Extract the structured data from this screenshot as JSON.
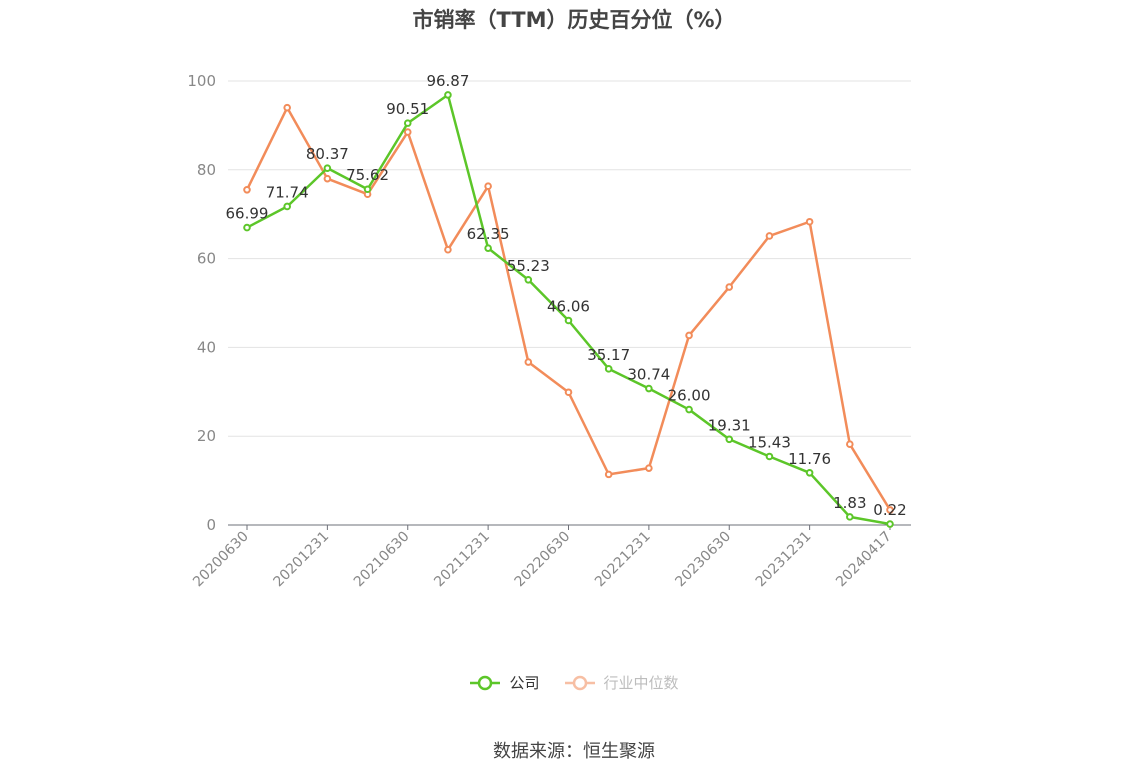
{
  "chart_data": {
    "type": "line",
    "title": "市销率（TTM）历史百分位（%）",
    "xlabel": "",
    "ylabel": "",
    "ylim": [
      0,
      100
    ],
    "yticks": [
      0,
      20,
      40,
      60,
      80,
      100
    ],
    "x": [
      "20200630",
      "20200930",
      "20201231",
      "20210331",
      "20210630",
      "20210930",
      "20211231",
      "20220331",
      "20220630",
      "20220930",
      "20221231",
      "20230331",
      "20230630",
      "20230930",
      "20231231",
      "20240331",
      "20240417"
    ],
    "xtick_labels": [
      "20200630",
      "20201231",
      "20210630",
      "20211231",
      "20220630",
      "20221231",
      "20230630",
      "20231231",
      "20240417"
    ],
    "grid": true,
    "legend_position": "bottom",
    "series": [
      {
        "name": "公司",
        "color": "#5cc629",
        "show_labels": true,
        "values": [
          66.99,
          71.74,
          80.37,
          75.62,
          90.51,
          96.87,
          62.35,
          55.23,
          46.06,
          35.17,
          30.74,
          26.0,
          19.31,
          15.43,
          11.76,
          1.83,
          0.22
        ],
        "labels": [
          "66.99",
          "71.74",
          "80.37",
          "75.62",
          "90.51",
          "96.87",
          "62.35",
          "55.23",
          "46.06",
          "35.17",
          "30.74",
          "26.00",
          "19.31",
          "15.43",
          "11.76",
          "1.83",
          "0.22"
        ]
      },
      {
        "name": "行业中位数",
        "color": "#f28c5a",
        "show_labels": false,
        "values": [
          75.5,
          94.0,
          78.0,
          74.5,
          88.5,
          62.0,
          76.3,
          36.7,
          29.9,
          11.4,
          12.8,
          42.7,
          53.6,
          65.1,
          68.3,
          18.2,
          3.4
        ]
      }
    ]
  },
  "source_note": "数据来源：恒生聚源"
}
